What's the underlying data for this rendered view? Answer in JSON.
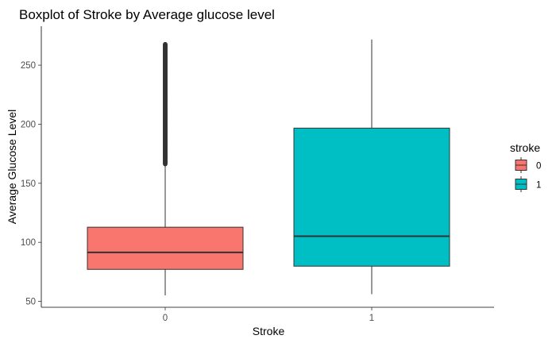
{
  "chart_data": {
    "type": "boxplot",
    "title": "Boxplot of Stroke by Average glucose level",
    "xlabel": "Stroke",
    "ylabel": "Average Glucose Level",
    "categories": [
      "0",
      "1"
    ],
    "ylim": [
      45,
      283
    ],
    "yticks": [
      50,
      100,
      150,
      200,
      250
    ],
    "grid": false,
    "legend": {
      "title": "stroke",
      "position": "right",
      "entries": [
        {
          "label": "0",
          "color": "#F8766D"
        },
        {
          "label": "1",
          "color": "#00BFC4"
        }
      ]
    },
    "boxes": [
      {
        "category": "0",
        "color": "#F8766D",
        "whisker_low": 55.1,
        "q1": 77.1,
        "median": 91.5,
        "q3": 112.8,
        "whisker_high": 166.3,
        "outlier_range": [
          166.3,
          267.8
        ]
      },
      {
        "category": "1",
        "color": "#00BFC4",
        "whisker_low": 56.1,
        "q1": 79.8,
        "median": 105.2,
        "q3": 196.7,
        "whisker_high": 271.7
      }
    ]
  }
}
